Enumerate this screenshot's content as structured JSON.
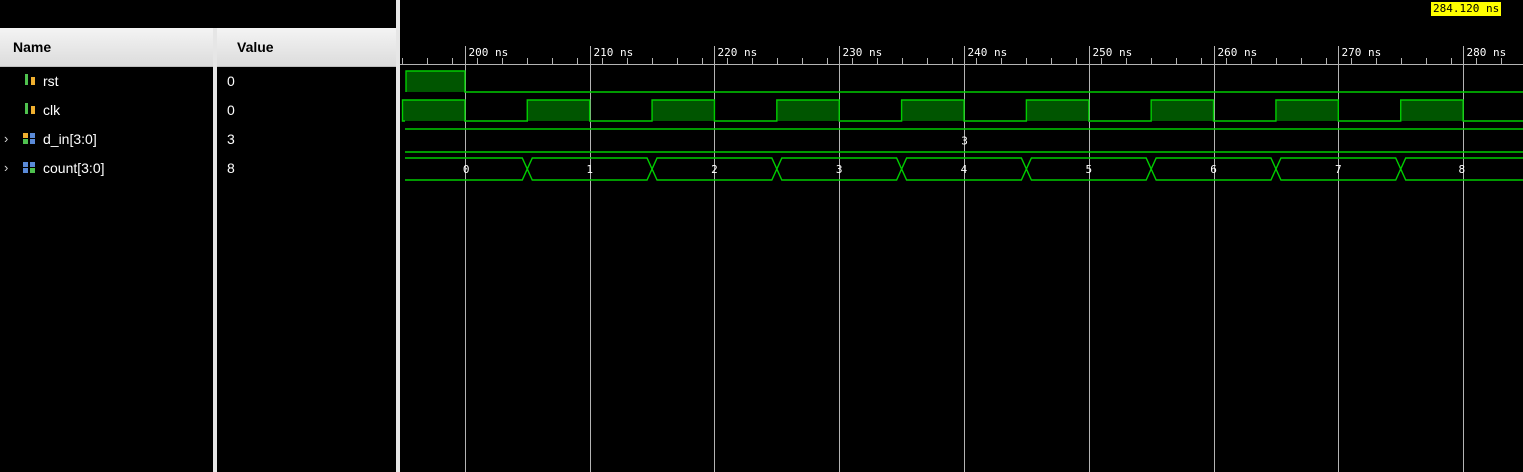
{
  "names_panel": {
    "header": {
      "name": "Name",
      "value": "Value"
    },
    "signals": [
      {
        "name": "rst",
        "value": "0",
        "icon": "bit-signal-icon",
        "expandable": false
      },
      {
        "name": "clk",
        "value": "0",
        "icon": "bit-signal-icon",
        "expandable": false
      },
      {
        "name": "d_in[3:0]",
        "value": "3",
        "icon": "bus-signal-icon",
        "expandable": true
      },
      {
        "name": "count[3:0]",
        "value": "8",
        "icon": "bus-signal-icon",
        "expandable": true
      }
    ]
  },
  "waveform": {
    "cursor_time": "284.120 ns",
    "time_unit": "ns",
    "view_start_ns": 194.8,
    "view_end_ns": 284.8,
    "time_labels": [
      "200 ns",
      "210 ns",
      "220 ns",
      "230 ns",
      "240 ns",
      "250 ns",
      "260 ns",
      "270 ns",
      "280 ns"
    ],
    "label_times_ns": [
      200,
      210,
      220,
      230,
      240,
      250,
      260,
      270,
      280
    ],
    "clk_period_ns": 10,
    "clk_high_start_ns": 195,
    "rst_deassert_ns": 200,
    "d_in_value": "3",
    "count_values": [
      "0",
      "1",
      "2",
      "3",
      "4",
      "5",
      "6",
      "7",
      "8"
    ],
    "count_change_times_ns": [
      205,
      215,
      225,
      235,
      245,
      255,
      265,
      275
    ],
    "colors": {
      "wave": "#00cc00",
      "fill": "#005500",
      "grid": "#b4b4b4",
      "cursor_bg": "#ffff00"
    }
  }
}
